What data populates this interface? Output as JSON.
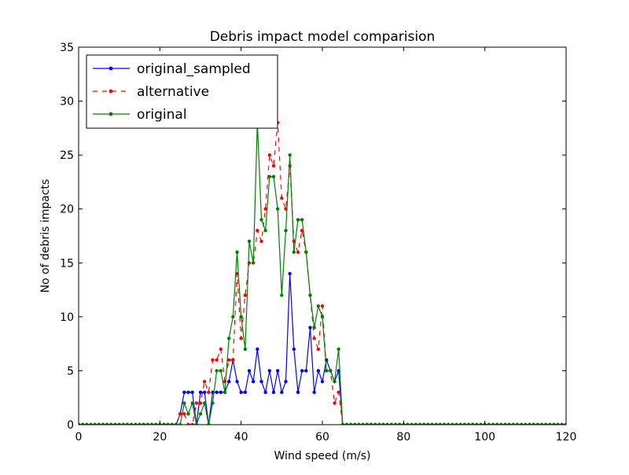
{
  "chart_data": {
    "type": "line",
    "title": "Debris impact model comparision",
    "xlabel": "Wind speed (m/s)",
    "ylabel": "No of debris impacts",
    "xlim": [
      0,
      120
    ],
    "ylim": [
      0,
      35
    ],
    "xticks": [
      0,
      20,
      40,
      60,
      80,
      100,
      120
    ],
    "yticks": [
      0,
      5,
      10,
      15,
      20,
      25,
      30,
      35
    ],
    "grid": false,
    "legend_position": "top-left",
    "series": [
      {
        "name": "original_sampled",
        "color": "#0000ff",
        "dash": "solid",
        "x": [
          0,
          1,
          2,
          3,
          4,
          5,
          6,
          7,
          8,
          9,
          10,
          11,
          12,
          13,
          14,
          15,
          16,
          17,
          18,
          19,
          20,
          21,
          22,
          23,
          24,
          25,
          26,
          27,
          28,
          29,
          30,
          31,
          32,
          33,
          34,
          35,
          36,
          37,
          38,
          39,
          40,
          41,
          42,
          43,
          44,
          45,
          46,
          47,
          48,
          49,
          50,
          51,
          52,
          53,
          54,
          55,
          56,
          57,
          58,
          59,
          60,
          61,
          62,
          63,
          64,
          65,
          66,
          67,
          68,
          69,
          70,
          71,
          72,
          73,
          74,
          75,
          76,
          77,
          78,
          79,
          80,
          81,
          82,
          83,
          84,
          85,
          86,
          87,
          88,
          89,
          90,
          91,
          92,
          93,
          94,
          95,
          96,
          97,
          98,
          99,
          100,
          101,
          102,
          103,
          104,
          105,
          106,
          107,
          108,
          109,
          110,
          111,
          112,
          113,
          114,
          115,
          116,
          117,
          118,
          119,
          120
        ],
        "y": [
          0,
          0,
          0,
          0,
          0,
          0,
          0,
          0,
          0,
          0,
          0,
          0,
          0,
          0,
          0,
          0,
          0,
          0,
          0,
          0,
          0,
          0,
          0,
          0,
          0,
          1,
          3,
          3,
          3,
          0,
          3,
          3,
          0,
          3,
          3,
          3,
          3,
          4,
          6,
          4,
          3,
          3,
          5,
          4,
          7,
          4,
          3,
          5,
          3,
          5,
          3,
          4,
          14,
          7,
          3,
          5,
          5,
          9,
          3,
          5,
          4,
          6,
          5,
          4,
          5,
          0,
          0,
          0,
          0,
          0,
          0,
          0,
          0,
          0,
          0,
          0,
          0,
          0,
          0,
          0,
          0,
          0,
          0,
          0,
          0,
          0,
          0,
          0,
          0,
          0,
          0,
          0,
          0,
          0,
          0,
          0,
          0,
          0,
          0,
          0,
          0,
          0,
          0,
          0,
          0,
          0,
          0,
          0,
          0,
          0,
          0,
          0,
          0,
          0,
          0,
          0,
          0,
          0,
          0,
          0,
          0
        ]
      },
      {
        "name": "alternative",
        "color": "#ff0000",
        "dash": "dashed",
        "x": [
          0,
          1,
          2,
          3,
          4,
          5,
          6,
          7,
          8,
          9,
          10,
          11,
          12,
          13,
          14,
          15,
          16,
          17,
          18,
          19,
          20,
          21,
          22,
          23,
          24,
          25,
          26,
          27,
          28,
          29,
          30,
          31,
          32,
          33,
          34,
          35,
          36,
          37,
          38,
          39,
          40,
          41,
          42,
          43,
          44,
          45,
          46,
          47,
          48,
          49,
          50,
          51,
          52,
          53,
          54,
          55,
          56,
          57,
          58,
          59,
          60,
          61,
          62,
          63,
          64,
          65,
          66,
          67,
          68,
          69,
          70,
          71,
          72,
          73,
          74,
          75,
          76,
          77,
          78,
          79,
          80,
          81,
          82,
          83,
          84,
          85,
          86,
          87,
          88,
          89,
          90,
          91,
          92,
          93,
          94,
          95,
          96,
          97,
          98,
          99,
          100,
          101,
          102,
          103,
          104,
          105,
          106,
          107,
          108,
          109,
          110,
          111,
          112,
          113,
          114,
          115,
          116,
          117,
          118,
          119,
          120
        ],
        "y": [
          0,
          0,
          0,
          0,
          0,
          0,
          0,
          0,
          0,
          0,
          0,
          0,
          0,
          0,
          0,
          0,
          0,
          0,
          0,
          0,
          0,
          0,
          0,
          0,
          0,
          1,
          1,
          0,
          0,
          2,
          2,
          4,
          3,
          6,
          6,
          7,
          4,
          6,
          6,
          14,
          8,
          12,
          15,
          15,
          18,
          17,
          20,
          25,
          24,
          28,
          21,
          20,
          24,
          17,
          16,
          18,
          16,
          12,
          8,
          7,
          11,
          5,
          5,
          2,
          3,
          0,
          0,
          0,
          0,
          0,
          0,
          0,
          0,
          0,
          0,
          0,
          0,
          0,
          0,
          0,
          0,
          0,
          0,
          0,
          0,
          0,
          0,
          0,
          0,
          0,
          0,
          0,
          0,
          0,
          0,
          0,
          0,
          0,
          0,
          0,
          0,
          0,
          0,
          0,
          0,
          0,
          0,
          0,
          0,
          0,
          0,
          0,
          0,
          0,
          0,
          0,
          0,
          0,
          0,
          0,
          0
        ]
      },
      {
        "name": "original",
        "color": "#008000",
        "dash": "solid",
        "x": [
          0,
          1,
          2,
          3,
          4,
          5,
          6,
          7,
          8,
          9,
          10,
          11,
          12,
          13,
          14,
          15,
          16,
          17,
          18,
          19,
          20,
          21,
          22,
          23,
          24,
          25,
          26,
          27,
          28,
          29,
          30,
          31,
          32,
          33,
          34,
          35,
          36,
          37,
          38,
          39,
          40,
          41,
          42,
          43,
          44,
          45,
          46,
          47,
          48,
          49,
          50,
          51,
          52,
          53,
          54,
          55,
          56,
          57,
          58,
          59,
          60,
          61,
          62,
          63,
          64,
          65,
          66,
          67,
          68,
          69,
          70,
          71,
          72,
          73,
          74,
          75,
          76,
          77,
          78,
          79,
          80,
          81,
          82,
          83,
          84,
          85,
          86,
          87,
          88,
          89,
          90,
          91,
          92,
          93,
          94,
          95,
          96,
          97,
          98,
          99,
          100,
          101,
          102,
          103,
          104,
          105,
          106,
          107,
          108,
          109,
          110,
          111,
          112,
          113,
          114,
          115,
          116,
          117,
          118,
          119,
          120
        ],
        "y": [
          0,
          0,
          0,
          0,
          0,
          0,
          0,
          0,
          0,
          0,
          0,
          0,
          0,
          0,
          0,
          0,
          0,
          0,
          0,
          0,
          0,
          0,
          0,
          0,
          0,
          0,
          2,
          1,
          2,
          0,
          1,
          2,
          0,
          2,
          5,
          5,
          3,
          8,
          10,
          16,
          10,
          7,
          17,
          15,
          28,
          19,
          18,
          23,
          23,
          20,
          12,
          18,
          25,
          16,
          19,
          19,
          16,
          12,
          9,
          11,
          10,
          5,
          5,
          4,
          7,
          0,
          0,
          0,
          0,
          0,
          0,
          0,
          0,
          0,
          0,
          0,
          0,
          0,
          0,
          0,
          0,
          0,
          0,
          0,
          0,
          0,
          0,
          0,
          0,
          0,
          0,
          0,
          0,
          0,
          0,
          0,
          0,
          0,
          0,
          0,
          0,
          0,
          0,
          0,
          0,
          0,
          0,
          0,
          0,
          0,
          0,
          0,
          0,
          0,
          0,
          0,
          0,
          0,
          0,
          0,
          0
        ]
      }
    ]
  }
}
